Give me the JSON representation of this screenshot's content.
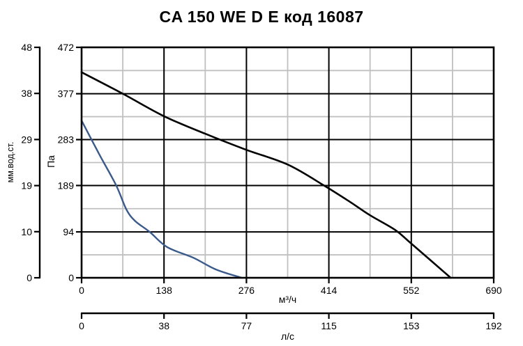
{
  "title": "CA 150 WE D E код 16087",
  "colors": {
    "background": "#ffffff",
    "text": "#000000",
    "major_grid": "#000000",
    "minor_grid": "#c0c0c0",
    "frame": "#000000",
    "main_curve": "#000000",
    "secondary_curve": "#3a5a8c"
  },
  "chart_data": {
    "type": "line",
    "title": "CA 150 WE D E код 16087",
    "grid": {
      "major": true,
      "minor": true
    },
    "legend": "none",
    "axes": {
      "x_flow_m3h": {
        "label": "м³/ч",
        "tick_labels": [
          "0",
          "138",
          "276",
          "414",
          "552",
          "690"
        ],
        "tick_values": [
          0,
          138,
          276,
          414,
          552,
          690
        ],
        "range": [
          0,
          690
        ],
        "position": "bottom"
      },
      "x_flow_ls": {
        "label": "л/с",
        "tick_labels": [
          "0",
          "38",
          "77",
          "115",
          "153",
          "192"
        ],
        "tick_values": [
          0,
          38,
          77,
          115,
          153,
          192
        ],
        "range": [
          0,
          192
        ],
        "position": "bottom-secondary"
      },
      "y_pressure_pa": {
        "label": "Па",
        "tick_labels": [
          "0",
          "94",
          "189",
          "283",
          "377",
          "472"
        ],
        "tick_values": [
          0,
          94,
          189,
          283,
          377,
          472
        ],
        "range": [
          0,
          472
        ],
        "position": "left"
      },
      "y_pressure_mm": {
        "label": "мм.вод.ст.",
        "tick_labels": [
          "0",
          "10",
          "19",
          "29",
          "38",
          "48"
        ],
        "tick_values": [
          0,
          10,
          19,
          29,
          38,
          48
        ],
        "range": [
          0,
          48
        ],
        "position": "left-secondary"
      }
    },
    "series": [
      {
        "name": "main-pressure-curve",
        "color": "#000000",
        "stroke_width": 2.6,
        "x_unit": "м³/ч",
        "y_unit": "Па",
        "points": [
          [
            0,
            421
          ],
          [
            69,
            377
          ],
          [
            138,
            331
          ],
          [
            207,
            295
          ],
          [
            276,
            262
          ],
          [
            345,
            232
          ],
          [
            406,
            189
          ],
          [
            450,
            155
          ],
          [
            483,
            128
          ],
          [
            525,
            98
          ],
          [
            552,
            70
          ],
          [
            618,
            0
          ]
        ]
      },
      {
        "name": "secondary-pressure-curve",
        "color": "#3a5a8c",
        "stroke_width": 2.4,
        "x_unit": "м³/ч",
        "y_unit": "Па",
        "points": [
          [
            0,
            322
          ],
          [
            30,
            252
          ],
          [
            58,
            189
          ],
          [
            75,
            140
          ],
          [
            90,
            116
          ],
          [
            114,
            94
          ],
          [
            143,
            63
          ],
          [
            187,
            41
          ],
          [
            225,
            17
          ],
          [
            268,
            0
          ]
        ]
      }
    ]
  }
}
